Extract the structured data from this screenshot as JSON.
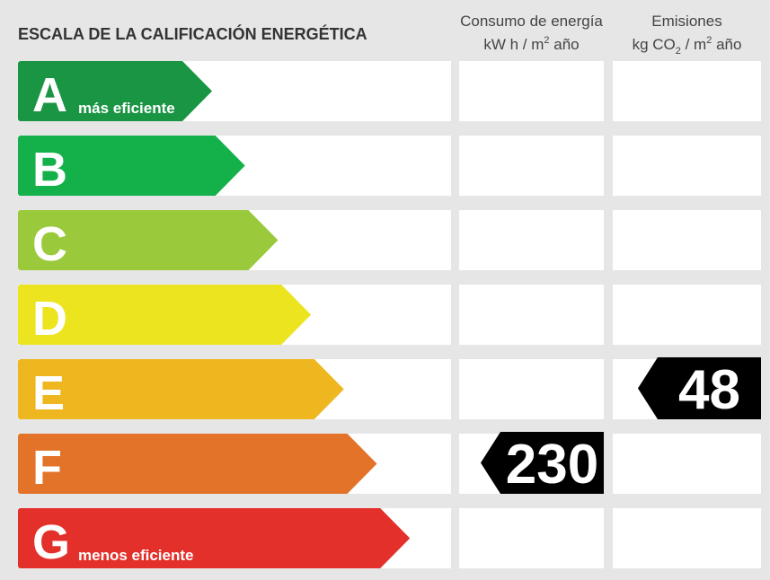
{
  "title": "ESCALA DE LA CALIFICACIÓN ENERGÉTICA",
  "columns": [
    {
      "title": "Consumo de energía",
      "unit": [
        {
          "text": "kW h  / m"
        },
        {
          "text": "2",
          "sup": true
        },
        {
          "text": " año"
        }
      ]
    },
    {
      "title": "Emisiones",
      "unit": [
        {
          "text": "kg CO"
        },
        {
          "text": "2",
          "sub": true
        },
        {
          "text": "  / m"
        },
        {
          "text": "2",
          "sup": true
        },
        {
          "text": " año"
        }
      ]
    }
  ],
  "ratings": [
    {
      "letter": "A",
      "note": "más eficiente",
      "color": "#1a9544"
    },
    {
      "letter": "B",
      "color": "#14b14b"
    },
    {
      "letter": "C",
      "color": "#9bc93c"
    },
    {
      "letter": "D",
      "color": "#ebe41f"
    },
    {
      "letter": "E",
      "color": "#eeb720"
    },
    {
      "letter": "F",
      "color": "#e27329"
    },
    {
      "letter": "G",
      "note": "menos eficiente",
      "color": "#e3302a"
    }
  ],
  "consumption": {
    "rating": "F",
    "value": 230
  },
  "emissions": {
    "rating": "E",
    "value": 48
  }
}
